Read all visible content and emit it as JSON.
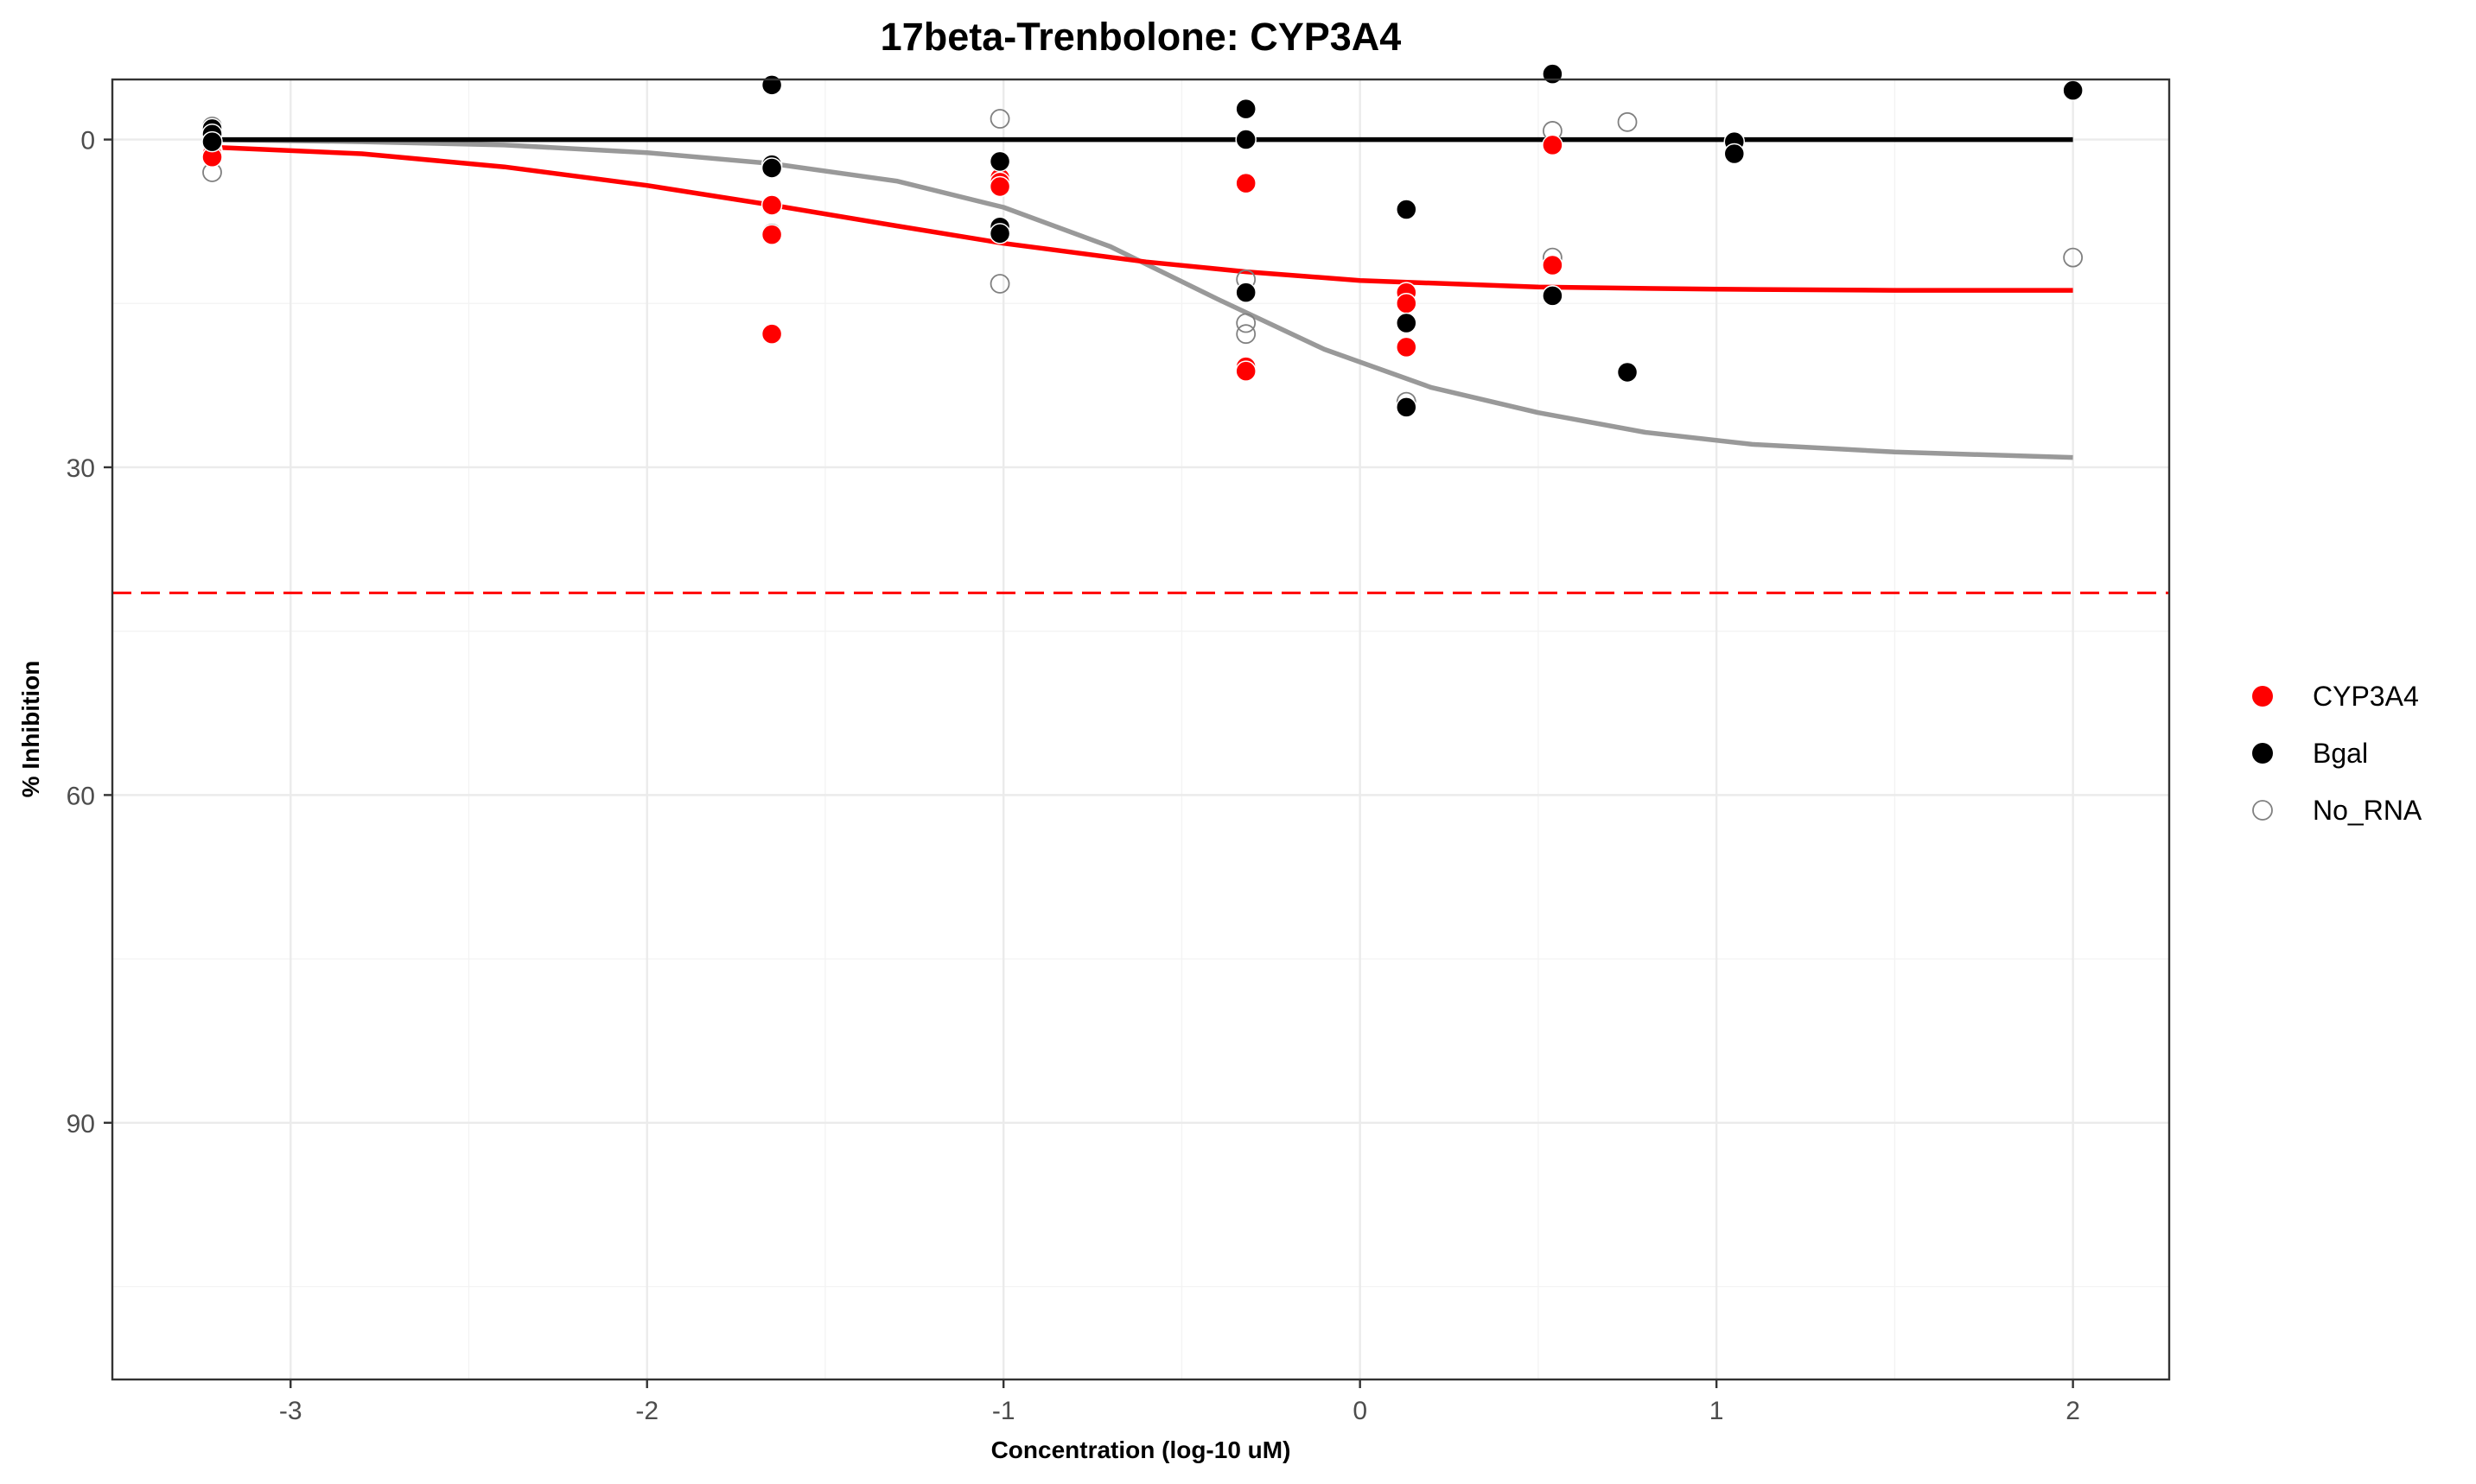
{
  "chart_data": {
    "type": "scatter",
    "title": "17beta-Trenbolone: CYP3A4",
    "xlabel": "Concentration (log-10 uM)",
    "ylabel": "% Inhibition",
    "xlim": [
      -3.5,
      2.27
    ],
    "ylim": [
      -5.5,
      113.5
    ],
    "y_reversed": true,
    "x_ticks": [
      -3,
      -2,
      -1,
      0,
      1,
      2
    ],
    "x_tick_labels": [
      "-3",
      "-2",
      "-1",
      "0",
      "1",
      "2"
    ],
    "y_ticks": [
      0,
      30,
      60,
      90
    ],
    "y_tick_labels": [
      "0",
      "30",
      "60",
      "90"
    ],
    "grid": true,
    "legend_position": "right",
    "threshold_line": {
      "y": 41.5,
      "color": "#ff0000",
      "style": "dashed"
    },
    "series": [
      {
        "name": "CYP3A4",
        "color": "#ff0000",
        "marker": "filled-circle",
        "points": [
          [
            -3.22,
            1.0
          ],
          [
            -3.22,
            1.3
          ],
          [
            -3.22,
            1.6
          ],
          [
            -1.65,
            6.0
          ],
          [
            -1.65,
            8.7
          ],
          [
            -1.65,
            17.8
          ],
          [
            -1.01,
            3.5
          ],
          [
            -1.01,
            3.9
          ],
          [
            -1.01,
            4.3
          ],
          [
            -0.32,
            4.0
          ],
          [
            -0.32,
            20.8
          ],
          [
            -0.32,
            21.2
          ],
          [
            0.13,
            14.0
          ],
          [
            0.13,
            15.0
          ],
          [
            0.13,
            19.0
          ],
          [
            0.54,
            0.5
          ],
          [
            0.54,
            11.5
          ],
          [
            0.54,
            14.3
          ]
        ],
        "fit_curve": [
          [
            -3.22,
            0.7
          ],
          [
            -2.8,
            1.3
          ],
          [
            -2.4,
            2.5
          ],
          [
            -2.0,
            4.2
          ],
          [
            -1.65,
            6.0
          ],
          [
            -1.3,
            7.9
          ],
          [
            -1.0,
            9.5
          ],
          [
            -0.6,
            11.2
          ],
          [
            -0.32,
            12.1
          ],
          [
            0.0,
            12.9
          ],
          [
            0.5,
            13.5
          ],
          [
            1.0,
            13.7
          ],
          [
            1.5,
            13.8
          ],
          [
            2.0,
            13.8
          ]
        ]
      },
      {
        "name": "Bgal",
        "color": "#000000",
        "marker": "filled-circle",
        "points": [
          [
            -3.22,
            -1.0
          ],
          [
            -3.22,
            -0.5
          ],
          [
            -3.22,
            0.2
          ],
          [
            -1.65,
            -5.0
          ],
          [
            -1.65,
            2.3
          ],
          [
            -1.65,
            2.6
          ],
          [
            -1.01,
            2.0
          ],
          [
            -1.01,
            8.0
          ],
          [
            -1.01,
            8.6
          ],
          [
            -0.32,
            -2.8
          ],
          [
            -0.32,
            0.0
          ],
          [
            -0.32,
            14.0
          ],
          [
            0.13,
            6.4
          ],
          [
            0.13,
            16.8
          ],
          [
            0.13,
            24.5
          ],
          [
            0.54,
            -6.0
          ],
          [
            0.54,
            14.3
          ],
          [
            0.75,
            21.3
          ],
          [
            1.05,
            0.2
          ],
          [
            1.05,
            1.3
          ],
          [
            2.0,
            -4.5
          ]
        ],
        "fit_curve": [
          [
            -3.22,
            0.0
          ],
          [
            2.0,
            0.0
          ]
        ]
      },
      {
        "name": "No_RNA",
        "color": "#808080",
        "marker": "open-circle",
        "points": [
          [
            -3.22,
            -1.2
          ],
          [
            -3.22,
            3.0
          ],
          [
            -1.65,
            2.6
          ],
          [
            -1.65,
            8.6
          ],
          [
            -1.01,
            -1.9
          ],
          [
            -1.01,
            13.2
          ],
          [
            -0.32,
            12.8
          ],
          [
            -0.32,
            16.8
          ],
          [
            -0.32,
            17.8
          ],
          [
            0.13,
            24.0
          ],
          [
            0.54,
            -0.8
          ],
          [
            0.54,
            10.8
          ],
          [
            0.54,
            11.5
          ],
          [
            0.75,
            -1.6
          ],
          [
            2.0,
            10.8
          ]
        ],
        "fit_curve": [
          [
            -3.22,
            0.0
          ],
          [
            -2.8,
            0.2
          ],
          [
            -2.4,
            0.5
          ],
          [
            -2.0,
            1.2
          ],
          [
            -1.65,
            2.2
          ],
          [
            -1.3,
            3.8
          ],
          [
            -1.0,
            6.2
          ],
          [
            -0.7,
            9.8
          ],
          [
            -0.4,
            14.6
          ],
          [
            -0.1,
            19.2
          ],
          [
            0.2,
            22.7
          ],
          [
            0.5,
            25.0
          ],
          [
            0.8,
            26.8
          ],
          [
            1.1,
            27.9
          ],
          [
            1.5,
            28.6
          ],
          [
            2.0,
            29.1
          ]
        ]
      }
    ]
  }
}
